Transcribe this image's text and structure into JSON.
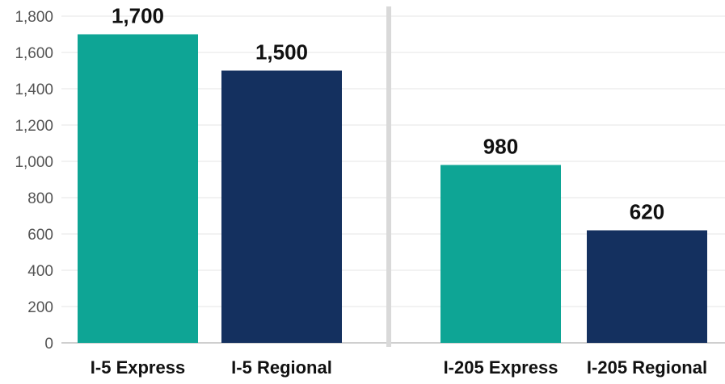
{
  "chart_data": {
    "type": "bar",
    "categories": [
      "I-5 Express",
      "I-5 Regional",
      "I-205 Express",
      "I-205 Regional"
    ],
    "values": [
      1700,
      1500,
      980,
      620
    ],
    "value_labels": [
      "1,700",
      "1,500",
      "980",
      "620"
    ],
    "groups": [
      {
        "categories": [
          "I-5 Express",
          "I-5 Regional"
        ]
      },
      {
        "categories": [
          "I-205 Express",
          "I-205 Regional"
        ]
      }
    ],
    "title": "",
    "xlabel": "",
    "ylabel": "",
    "ylim": [
      0,
      1800
    ],
    "yticks": [
      0,
      200,
      400,
      600,
      800,
      1000,
      1200,
      1400,
      1600,
      1800
    ],
    "ytick_labels": [
      "0",
      "200",
      "400",
      "600",
      "800",
      "1,000",
      "1,200",
      "1,400",
      "1,600",
      "1,800"
    ],
    "grid": true,
    "colors": {
      "express": "#0ea595",
      "regional": "#14305f",
      "grid": "#e6e6e6",
      "divider": "#d9d9d9"
    }
  }
}
